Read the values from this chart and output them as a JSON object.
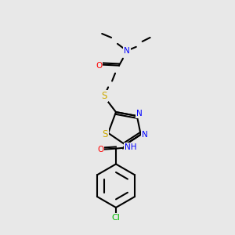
{
  "bg_color": "#e8e8e8",
  "atom_colors": {
    "C": "#000000",
    "N": "#0000ff",
    "O": "#ff0000",
    "S": "#ccaa00",
    "Cl": "#00bb00",
    "H": "#008888"
  },
  "lw": 1.5,
  "fs": 7.5
}
